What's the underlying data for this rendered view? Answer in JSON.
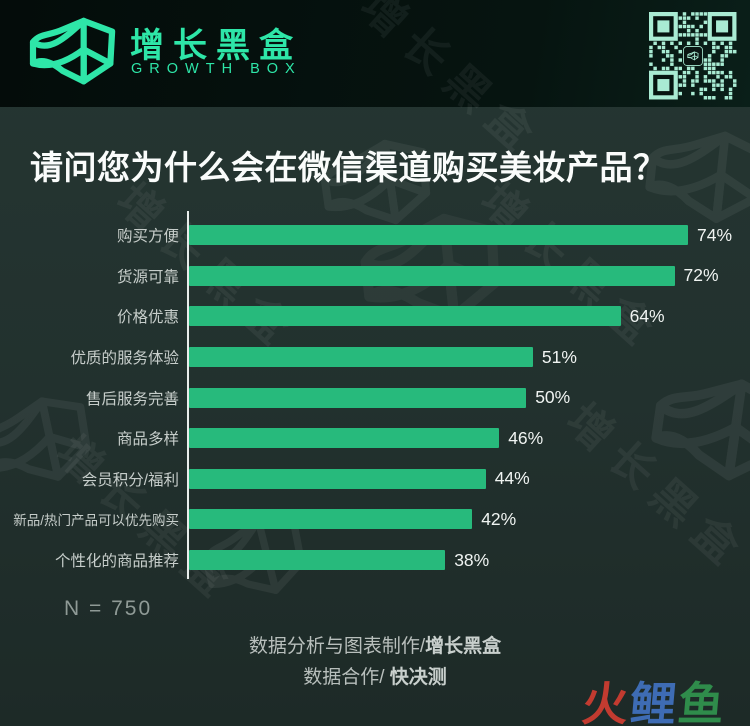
{
  "brand": {
    "name_cn": "增长黑盒",
    "name_en": "GROWTH BOX"
  },
  "title": "请问您为什么会在微信渠道购买美妆产品？",
  "chart_data": {
    "type": "bar",
    "orientation": "horizontal",
    "title": "请问您为什么会在微信渠道购买美妆产品？",
    "categories": [
      "购买方便",
      "货源可靠",
      "价格优惠",
      "优质的服务体验",
      "售后服务完善",
      "商品多样",
      "会员积分/福利",
      "新品/热门产品可以优先购买",
      "个性化的商品推荐"
    ],
    "values": [
      74,
      72,
      64,
      51,
      50,
      46,
      44,
      42,
      38
    ],
    "unit": "%",
    "xlim": [
      0,
      80
    ],
    "grid": false,
    "bar_color": "#27ba7c",
    "sample_size_note": "N = 750"
  },
  "footer": {
    "credit1_prefix": "数据分析与图表制作/",
    "credit1_brand": "增长黑盒",
    "credit2_prefix": "数据合作/ ",
    "cred2_spacer": "",
    "credit2_brand": "快决测"
  },
  "watermarks": {
    "brand_tile_text": "增长黑盒",
    "site_mark": [
      {
        "char": "火",
        "color": "#c23b30"
      },
      {
        "char": "鲤",
        "color": "#3e6cb4"
      },
      {
        "char": "鱼",
        "color": "#2f8c4b"
      }
    ]
  },
  "colors": {
    "header_bg": "#050e0c",
    "body_bg": "#22312e",
    "accent": "#2ee6a8",
    "bar": "#27ba7c",
    "qr": "#a9ebd3",
    "axis": "#e9edeb",
    "category_label": "#c6cdca",
    "value_label": "#f0f4f2",
    "muted": "#8f9a96",
    "footer_text": "#b8bfbc"
  }
}
